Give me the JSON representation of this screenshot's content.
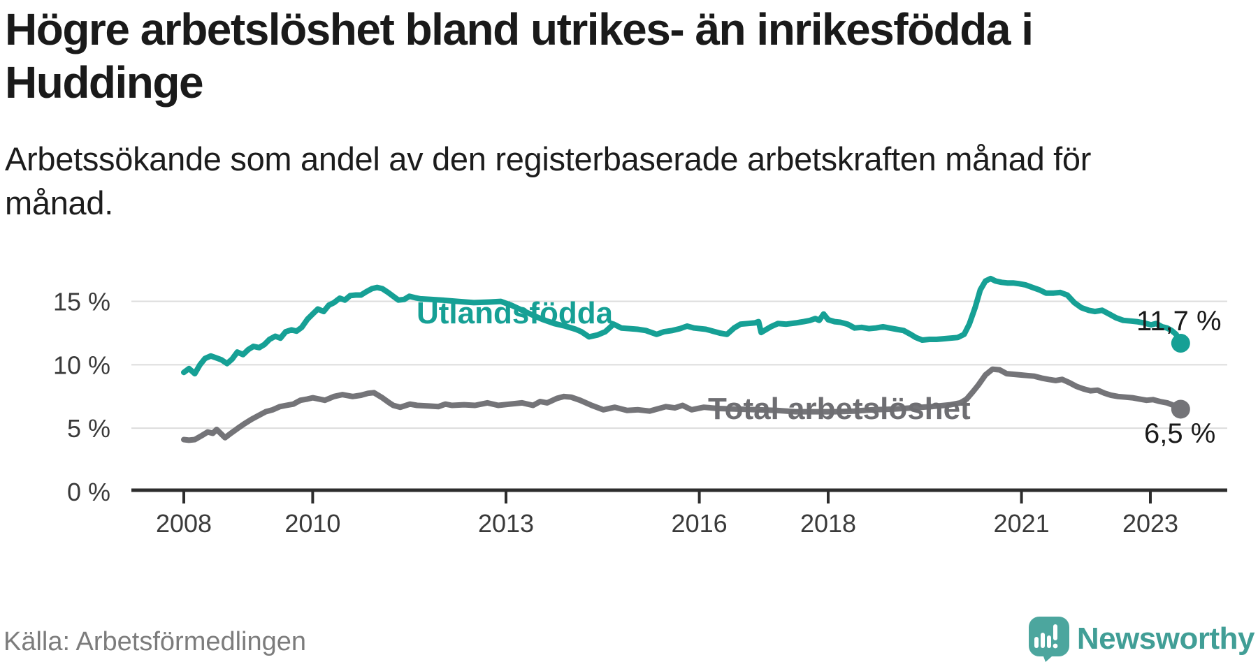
{
  "header": {
    "title_line1": "Högre arbetslöshet bland utrikes- än inrikesfödda i",
    "title_line2": "Huddinge",
    "subtitle_line1": "Arbetssökande som andel av den registerbaserade arbetskraften månad för",
    "subtitle_line2": "månad."
  },
  "source": {
    "label": "Källa: Arbetsförmedlingen"
  },
  "logo": {
    "text": "Newsworthy",
    "icon": "newsworthy-speech-bubble-chart-icon",
    "color": "#4CA69E",
    "text_color": "#419E96"
  },
  "colors": {
    "teal_line": "#16A095",
    "gray_line": "#747478",
    "gridline": "#DCDCDC",
    "axis": "#2D2D2D",
    "tick_label": "#3A3A3A",
    "end_label": "#1A1A1A"
  },
  "chart_data": {
    "type": "line",
    "title": "Högre arbetslöshet bland utrikes- än inrikesfödda i Huddinge",
    "subtitle": "Arbetssökande som andel av den registerbaserade arbetskraften månad för månad.",
    "xlabel": "",
    "ylabel": "",
    "xlim": [
      2007.2,
      2024.2
    ],
    "ylim": [
      0,
      20
    ],
    "grid": "horizontal",
    "legend_position": "inline-labels",
    "x_ticks": [
      {
        "v": 2008,
        "label": "2008"
      },
      {
        "v": 2010,
        "label": "2010"
      },
      {
        "v": 2013,
        "label": "2013"
      },
      {
        "v": 2016,
        "label": "2016"
      },
      {
        "v": 2018,
        "label": "2018"
      },
      {
        "v": 2021,
        "label": "2021"
      },
      {
        "v": 2023,
        "label": "2023"
      }
    ],
    "y_ticks": [
      {
        "v": 0,
        "label": "0 %"
      },
      {
        "v": 5,
        "label": "5 %"
      },
      {
        "v": 10,
        "label": "10 %"
      },
      {
        "v": 15,
        "label": "15 %"
      }
    ],
    "series": [
      {
        "name": "Utlandsfödda",
        "color": "#16A095",
        "end_label": "11,7 %",
        "end_value": 11.7,
        "points": [
          [
            2008.0,
            9.4
          ],
          [
            2008.08,
            9.7
          ],
          [
            2008.17,
            9.3
          ],
          [
            2008.25,
            10.0
          ],
          [
            2008.33,
            10.5
          ],
          [
            2008.42,
            10.7
          ],
          [
            2008.5,
            10.55
          ],
          [
            2008.58,
            10.4
          ],
          [
            2008.67,
            10.1
          ],
          [
            2008.75,
            10.45
          ],
          [
            2008.83,
            11.0
          ],
          [
            2008.92,
            10.8
          ],
          [
            2009.0,
            11.2
          ],
          [
            2009.08,
            11.45
          ],
          [
            2009.17,
            11.35
          ],
          [
            2009.25,
            11.6
          ],
          [
            2009.33,
            12.0
          ],
          [
            2009.42,
            12.25
          ],
          [
            2009.5,
            12.1
          ],
          [
            2009.58,
            12.6
          ],
          [
            2009.67,
            12.75
          ],
          [
            2009.75,
            12.65
          ],
          [
            2009.83,
            12.95
          ],
          [
            2009.92,
            13.6
          ],
          [
            2010.0,
            14.0
          ],
          [
            2010.08,
            14.4
          ],
          [
            2010.17,
            14.2
          ],
          [
            2010.25,
            14.7
          ],
          [
            2010.33,
            14.9
          ],
          [
            2010.42,
            15.25
          ],
          [
            2010.5,
            15.1
          ],
          [
            2010.58,
            15.45
          ],
          [
            2010.67,
            15.5
          ],
          [
            2010.75,
            15.5
          ],
          [
            2010.83,
            15.75
          ],
          [
            2010.92,
            16.0
          ],
          [
            2011.0,
            16.1
          ],
          [
            2011.08,
            16.0
          ],
          [
            2011.17,
            15.7
          ],
          [
            2011.25,
            15.4
          ],
          [
            2011.33,
            15.1
          ],
          [
            2011.42,
            15.15
          ],
          [
            2011.5,
            15.4
          ],
          [
            2011.58,
            15.3
          ],
          [
            2011.67,
            15.2
          ],
          [
            2011.83,
            15.15
          ],
          [
            2012.0,
            15.1
          ],
          [
            2012.25,
            15.0
          ],
          [
            2012.5,
            14.9
          ],
          [
            2012.75,
            14.95
          ],
          [
            2012.92,
            15.0
          ],
          [
            2013.08,
            14.7
          ],
          [
            2013.25,
            14.3
          ],
          [
            2013.42,
            13.9
          ],
          [
            2013.58,
            13.55
          ],
          [
            2013.75,
            13.25
          ],
          [
            2013.92,
            13.05
          ],
          [
            2014.08,
            12.8
          ],
          [
            2014.17,
            12.6
          ],
          [
            2014.29,
            12.2
          ],
          [
            2014.42,
            12.35
          ],
          [
            2014.54,
            12.6
          ],
          [
            2014.67,
            13.2
          ],
          [
            2014.79,
            12.9
          ],
          [
            2014.92,
            12.85
          ],
          [
            2015.04,
            12.8
          ],
          [
            2015.17,
            12.7
          ],
          [
            2015.34,
            12.4
          ],
          [
            2015.45,
            12.6
          ],
          [
            2015.58,
            12.7
          ],
          [
            2015.7,
            12.85
          ],
          [
            2015.81,
            13.05
          ],
          [
            2015.92,
            12.9
          ],
          [
            2016.1,
            12.8
          ],
          [
            2016.21,
            12.65
          ],
          [
            2016.32,
            12.5
          ],
          [
            2016.43,
            12.4
          ],
          [
            2016.54,
            12.9
          ],
          [
            2016.64,
            13.2
          ],
          [
            2016.75,
            13.25
          ],
          [
            2016.86,
            13.3
          ],
          [
            2016.92,
            13.4
          ],
          [
            2016.96,
            12.55
          ],
          [
            2017.11,
            13.0
          ],
          [
            2017.22,
            13.25
          ],
          [
            2017.35,
            13.2
          ],
          [
            2017.5,
            13.3
          ],
          [
            2017.62,
            13.4
          ],
          [
            2017.72,
            13.5
          ],
          [
            2017.8,
            13.65
          ],
          [
            2017.86,
            13.5
          ],
          [
            2017.93,
            14.0
          ],
          [
            2018.0,
            13.55
          ],
          [
            2018.1,
            13.4
          ],
          [
            2018.19,
            13.35
          ],
          [
            2018.3,
            13.2
          ],
          [
            2018.41,
            12.9
          ],
          [
            2018.52,
            12.95
          ],
          [
            2018.63,
            12.85
          ],
          [
            2018.74,
            12.9
          ],
          [
            2018.85,
            13.0
          ],
          [
            2018.95,
            12.9
          ],
          [
            2019.06,
            12.8
          ],
          [
            2019.17,
            12.7
          ],
          [
            2019.28,
            12.4
          ],
          [
            2019.36,
            12.15
          ],
          [
            2019.46,
            11.95
          ],
          [
            2019.57,
            12.0
          ],
          [
            2019.68,
            12.0
          ],
          [
            2019.79,
            12.05
          ],
          [
            2019.9,
            12.1
          ],
          [
            2020.01,
            12.15
          ],
          [
            2020.11,
            12.4
          ],
          [
            2020.19,
            13.2
          ],
          [
            2020.28,
            14.5
          ],
          [
            2020.36,
            15.9
          ],
          [
            2020.44,
            16.6
          ],
          [
            2020.52,
            16.8
          ],
          [
            2020.6,
            16.6
          ],
          [
            2020.69,
            16.5
          ],
          [
            2020.78,
            16.45
          ],
          [
            2020.87,
            16.45
          ],
          [
            2020.95,
            16.4
          ],
          [
            2021.06,
            16.3
          ],
          [
            2021.17,
            16.1
          ],
          [
            2021.28,
            15.9
          ],
          [
            2021.38,
            15.65
          ],
          [
            2021.5,
            15.65
          ],
          [
            2021.6,
            15.7
          ],
          [
            2021.71,
            15.5
          ],
          [
            2021.82,
            14.9
          ],
          [
            2021.93,
            14.5
          ],
          [
            2022.04,
            14.3
          ],
          [
            2022.14,
            14.2
          ],
          [
            2022.25,
            14.3
          ],
          [
            2022.36,
            14.0
          ],
          [
            2022.47,
            13.7
          ],
          [
            2022.58,
            13.5
          ],
          [
            2022.69,
            13.45
          ],
          [
            2022.79,
            13.4
          ],
          [
            2022.9,
            13.3
          ],
          [
            2023.01,
            13.15
          ],
          [
            2023.09,
            13.25
          ],
          [
            2023.18,
            13.0
          ],
          [
            2023.26,
            12.9
          ],
          [
            2023.33,
            12.7
          ],
          [
            2023.4,
            12.4
          ],
          [
            2023.47,
            11.7
          ]
        ]
      },
      {
        "name": "Total arbetslöshet",
        "color": "#747478",
        "end_label": "6,5 %",
        "end_value": 6.5,
        "points": [
          [
            2008.0,
            4.1
          ],
          [
            2008.08,
            4.05
          ],
          [
            2008.17,
            4.1
          ],
          [
            2008.29,
            4.45
          ],
          [
            2008.37,
            4.7
          ],
          [
            2008.45,
            4.6
          ],
          [
            2008.51,
            4.9
          ],
          [
            2008.58,
            4.55
          ],
          [
            2008.64,
            4.25
          ],
          [
            2008.73,
            4.6
          ],
          [
            2008.84,
            5.0
          ],
          [
            2008.94,
            5.35
          ],
          [
            2009.05,
            5.7
          ],
          [
            2009.16,
            6.0
          ],
          [
            2009.27,
            6.3
          ],
          [
            2009.38,
            6.45
          ],
          [
            2009.49,
            6.7
          ],
          [
            2009.59,
            6.8
          ],
          [
            2009.7,
            6.9
          ],
          [
            2009.81,
            7.2
          ],
          [
            2009.92,
            7.3
          ],
          [
            2010.0,
            7.4
          ],
          [
            2010.19,
            7.2
          ],
          [
            2010.33,
            7.5
          ],
          [
            2010.46,
            7.65
          ],
          [
            2010.62,
            7.5
          ],
          [
            2010.75,
            7.6
          ],
          [
            2010.86,
            7.75
          ],
          [
            2010.95,
            7.8
          ],
          [
            2011.08,
            7.4
          ],
          [
            2011.19,
            7.0
          ],
          [
            2011.25,
            6.8
          ],
          [
            2011.36,
            6.65
          ],
          [
            2011.51,
            6.9
          ],
          [
            2011.62,
            6.8
          ],
          [
            2011.8,
            6.75
          ],
          [
            2011.95,
            6.7
          ],
          [
            2012.06,
            6.9
          ],
          [
            2012.16,
            6.8
          ],
          [
            2012.35,
            6.85
          ],
          [
            2012.52,
            6.8
          ],
          [
            2012.71,
            7.0
          ],
          [
            2012.88,
            6.8
          ],
          [
            2013.06,
            6.9
          ],
          [
            2013.25,
            7.0
          ],
          [
            2013.42,
            6.8
          ],
          [
            2013.53,
            7.1
          ],
          [
            2013.64,
            7.0
          ],
          [
            2013.79,
            7.35
          ],
          [
            2013.9,
            7.5
          ],
          [
            2014.01,
            7.45
          ],
          [
            2014.15,
            7.2
          ],
          [
            2014.33,
            6.8
          ],
          [
            2014.51,
            6.45
          ],
          [
            2014.69,
            6.65
          ],
          [
            2014.88,
            6.4
          ],
          [
            2015.05,
            6.45
          ],
          [
            2015.23,
            6.35
          ],
          [
            2015.34,
            6.5
          ],
          [
            2015.48,
            6.7
          ],
          [
            2015.62,
            6.6
          ],
          [
            2015.74,
            6.8
          ],
          [
            2015.88,
            6.45
          ],
          [
            2016.07,
            6.65
          ],
          [
            2016.3,
            6.55
          ],
          [
            2016.6,
            6.5
          ],
          [
            2016.9,
            6.45
          ],
          [
            2017.2,
            6.4
          ],
          [
            2017.5,
            6.3
          ],
          [
            2017.8,
            6.3
          ],
          [
            2018.1,
            6.3
          ],
          [
            2018.4,
            6.35
          ],
          [
            2018.7,
            6.45
          ],
          [
            2019.0,
            6.5
          ],
          [
            2019.3,
            6.6
          ],
          [
            2019.6,
            6.7
          ],
          [
            2019.9,
            6.85
          ],
          [
            2020.05,
            7.0
          ],
          [
            2020.15,
            7.3
          ],
          [
            2020.25,
            7.9
          ],
          [
            2020.33,
            8.4
          ],
          [
            2020.44,
            9.2
          ],
          [
            2020.55,
            9.65
          ],
          [
            2020.66,
            9.6
          ],
          [
            2020.77,
            9.3
          ],
          [
            2020.88,
            9.25
          ],
          [
            2020.98,
            9.2
          ],
          [
            2021.09,
            9.15
          ],
          [
            2021.2,
            9.1
          ],
          [
            2021.31,
            8.95
          ],
          [
            2021.42,
            8.85
          ],
          [
            2021.53,
            8.76
          ],
          [
            2021.63,
            8.85
          ],
          [
            2021.74,
            8.6
          ],
          [
            2021.85,
            8.3
          ],
          [
            2021.96,
            8.1
          ],
          [
            2022.07,
            7.95
          ],
          [
            2022.18,
            8.0
          ],
          [
            2022.29,
            7.76
          ],
          [
            2022.39,
            7.6
          ],
          [
            2022.5,
            7.5
          ],
          [
            2022.61,
            7.45
          ],
          [
            2022.72,
            7.4
          ],
          [
            2022.83,
            7.3
          ],
          [
            2022.94,
            7.2
          ],
          [
            2023.04,
            7.25
          ],
          [
            2023.15,
            7.1
          ],
          [
            2023.26,
            7.0
          ],
          [
            2023.36,
            6.8
          ],
          [
            2023.47,
            6.5
          ]
        ]
      }
    ]
  }
}
